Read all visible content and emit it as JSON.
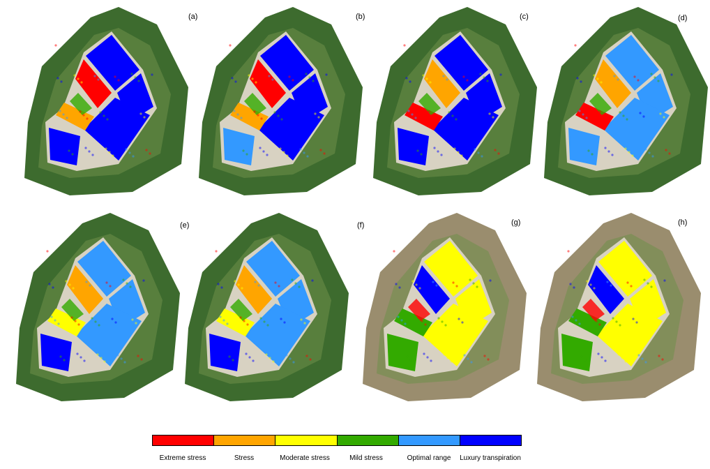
{
  "panels": [
    {
      "label": "(a)"
    },
    {
      "label": "(b)"
    },
    {
      "label": "(c)"
    },
    {
      "label": "(d)"
    },
    {
      "label": "(e)"
    },
    {
      "label": "(f)"
    },
    {
      "label": "(g)"
    },
    {
      "label": "(h)"
    }
  ],
  "legend": {
    "items": [
      {
        "label": "Extreme stress",
        "color": "#ff0000"
      },
      {
        "label": "Stress",
        "color": "#ffa500"
      },
      {
        "label": "Moderate stress",
        "color": "#ffff00"
      },
      {
        "label": "Mild stress",
        "color": "#33aa00"
      },
      {
        "label": "Optimal range",
        "color": "#3399ff"
      },
      {
        "label": "Luxury transpiration",
        "color": "#0000ff"
      }
    ]
  }
}
